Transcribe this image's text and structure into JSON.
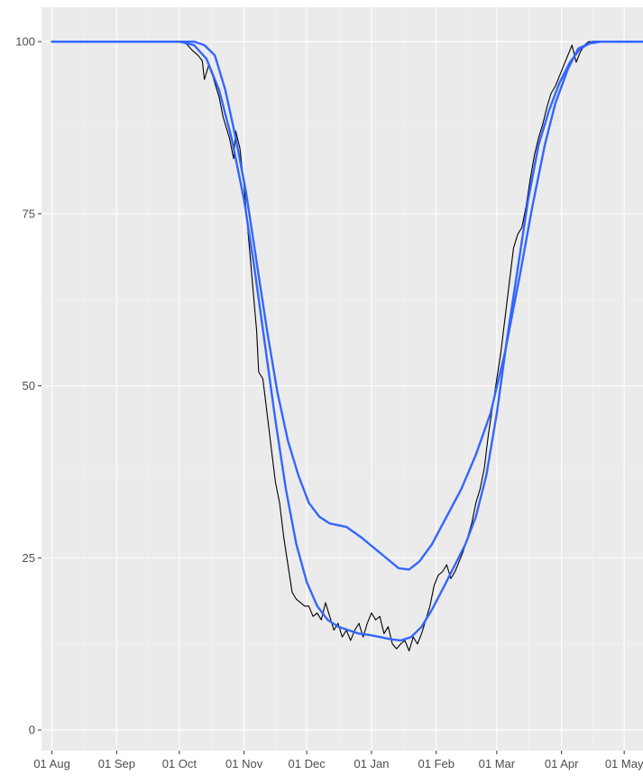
{
  "chart_data": {
    "type": "line",
    "title": "",
    "xlabel": "",
    "ylabel": "",
    "xlim": [
      "2019-07-27",
      "2020-05-10"
    ],
    "ylim": [
      -3,
      105
    ],
    "grid": true,
    "legend": "none",
    "colors": {
      "panel": "#ebebeb",
      "observed": "#000000",
      "smooth": "#3366ff"
    },
    "x_ticks": [
      "2019-08-01",
      "2019-09-01",
      "2019-10-01",
      "2019-11-01",
      "2019-12-01",
      "2020-01-01",
      "2020-02-01",
      "2020-03-01",
      "2020-04-01",
      "2020-05-01"
    ],
    "x_tick_labels": [
      "01 Aug",
      "01 Sep",
      "01 Oct",
      "01 Nov",
      "01 Dec",
      "01 Jan",
      "01 Feb",
      "01 Mar",
      "01 Apr",
      "01 May"
    ],
    "y_ticks": [
      0,
      25,
      50,
      75,
      100
    ],
    "y_tick_labels": [
      "0",
      "25",
      "50",
      "75",
      "100"
    ],
    "series": [
      {
        "style": "observed",
        "points": [
          [
            "2019-08-01",
            100
          ],
          [
            "2019-09-01",
            100
          ],
          [
            "2019-10-01",
            100
          ],
          [
            "2019-10-04",
            99.8
          ],
          [
            "2019-10-07",
            98.8
          ],
          [
            "2019-10-10",
            98
          ],
          [
            "2019-10-12",
            97.2
          ],
          [
            "2019-10-13",
            94.5
          ],
          [
            "2019-10-15",
            96.5
          ],
          [
            "2019-10-17",
            95
          ],
          [
            "2019-10-20",
            92
          ],
          [
            "2019-10-22",
            89
          ],
          [
            "2019-10-25",
            86
          ],
          [
            "2019-10-27",
            83
          ],
          [
            "2019-10-28",
            87
          ],
          [
            "2019-10-30",
            84.5
          ],
          [
            "2019-11-01",
            79
          ],
          [
            "2019-11-03",
            72
          ],
          [
            "2019-11-05",
            65
          ],
          [
            "2019-11-07",
            58
          ],
          [
            "2019-11-08",
            52
          ],
          [
            "2019-11-10",
            51
          ],
          [
            "2019-11-12",
            46
          ],
          [
            "2019-11-14",
            41
          ],
          [
            "2019-11-16",
            36
          ],
          [
            "2019-11-18",
            33
          ],
          [
            "2019-11-20",
            28
          ],
          [
            "2019-11-22",
            24
          ],
          [
            "2019-11-24",
            20
          ],
          [
            "2019-11-26",
            19
          ],
          [
            "2019-11-28",
            18.5
          ],
          [
            "2019-11-30",
            18
          ],
          [
            "2019-12-02",
            18
          ],
          [
            "2019-12-04",
            16.5
          ],
          [
            "2019-12-06",
            17
          ],
          [
            "2019-12-08",
            16
          ],
          [
            "2019-12-10",
            18.5
          ],
          [
            "2019-12-12",
            16.5
          ],
          [
            "2019-12-14",
            14.5
          ],
          [
            "2019-12-16",
            15.5
          ],
          [
            "2019-12-18",
            13.5
          ],
          [
            "2019-12-20",
            14.5
          ],
          [
            "2019-12-22",
            13
          ],
          [
            "2019-12-24",
            14.5
          ],
          [
            "2019-12-26",
            15.5
          ],
          [
            "2019-12-28",
            13.5
          ],
          [
            "2019-12-30",
            15.5
          ],
          [
            "2020-01-01",
            17
          ],
          [
            "2020-01-03",
            16
          ],
          [
            "2020-01-05",
            16.5
          ],
          [
            "2020-01-07",
            14
          ],
          [
            "2020-01-09",
            15
          ],
          [
            "2020-01-11",
            12.5
          ],
          [
            "2020-01-13",
            11.8
          ],
          [
            "2020-01-15",
            12.5
          ],
          [
            "2020-01-17",
            13
          ],
          [
            "2020-01-19",
            11.5
          ],
          [
            "2020-01-21",
            13.5
          ],
          [
            "2020-01-23",
            12.5
          ],
          [
            "2020-01-25",
            14
          ],
          [
            "2020-01-27",
            16
          ],
          [
            "2020-01-29",
            18
          ],
          [
            "2020-01-31",
            21
          ],
          [
            "2020-02-02",
            22.5
          ],
          [
            "2020-02-04",
            23
          ],
          [
            "2020-02-06",
            24
          ],
          [
            "2020-02-08",
            22
          ],
          [
            "2020-02-10",
            23
          ],
          [
            "2020-02-12",
            24.5
          ],
          [
            "2020-02-14",
            26
          ],
          [
            "2020-02-16",
            28
          ],
          [
            "2020-02-18",
            30
          ],
          [
            "2020-02-20",
            33
          ],
          [
            "2020-02-22",
            35
          ],
          [
            "2020-02-24",
            38
          ],
          [
            "2020-02-26",
            43
          ],
          [
            "2020-02-28",
            47
          ],
          [
            "2020-03-01",
            51
          ],
          [
            "2020-03-03",
            55
          ],
          [
            "2020-03-05",
            60
          ],
          [
            "2020-03-07",
            65
          ],
          [
            "2020-03-09",
            70
          ],
          [
            "2020-03-11",
            72
          ],
          [
            "2020-03-13",
            73
          ],
          [
            "2020-03-15",
            76
          ],
          [
            "2020-03-17",
            80
          ],
          [
            "2020-03-19",
            83.5
          ],
          [
            "2020-03-21",
            86
          ],
          [
            "2020-03-23",
            88
          ],
          [
            "2020-03-25",
            90.5
          ],
          [
            "2020-03-27",
            92.5
          ],
          [
            "2020-03-29",
            93.5
          ],
          [
            "2020-03-31",
            95
          ],
          [
            "2020-04-02",
            96.5
          ],
          [
            "2020-04-04",
            98
          ],
          [
            "2020-04-06",
            99.5
          ],
          [
            "2020-04-08",
            97
          ],
          [
            "2020-04-10",
            98.5
          ],
          [
            "2020-04-12",
            99.5
          ],
          [
            "2020-04-14",
            100
          ],
          [
            "2020-04-20",
            100
          ],
          [
            "2020-05-10",
            100
          ]
        ]
      },
      {
        "style": "smooth",
        "points": [
          [
            "2019-08-01",
            100
          ],
          [
            "2019-10-01",
            100
          ],
          [
            "2019-10-08",
            99.5
          ],
          [
            "2019-10-14",
            97.5
          ],
          [
            "2019-10-20",
            93
          ],
          [
            "2019-10-26",
            86
          ],
          [
            "2019-11-01",
            77
          ],
          [
            "2019-11-06",
            67
          ],
          [
            "2019-11-11",
            56
          ],
          [
            "2019-11-16",
            45
          ],
          [
            "2019-11-21",
            35
          ],
          [
            "2019-11-26",
            27
          ],
          [
            "2019-12-01",
            21.5
          ],
          [
            "2019-12-06",
            18
          ],
          [
            "2019-12-11",
            16
          ],
          [
            "2019-12-16",
            15
          ],
          [
            "2019-12-21",
            14.5
          ],
          [
            "2019-12-26",
            14
          ],
          [
            "2019-12-31",
            13.8
          ],
          [
            "2020-01-05",
            13.5
          ],
          [
            "2020-01-10",
            13.2
          ],
          [
            "2020-01-15",
            13
          ],
          [
            "2020-01-20",
            13.5
          ],
          [
            "2020-01-25",
            15
          ],
          [
            "2020-01-30",
            17.5
          ],
          [
            "2020-02-05",
            21
          ],
          [
            "2020-02-10",
            24
          ],
          [
            "2020-02-15",
            27
          ],
          [
            "2020-02-20",
            31
          ],
          [
            "2020-02-25",
            37
          ],
          [
            "2020-03-01",
            46
          ],
          [
            "2020-03-06",
            57
          ],
          [
            "2020-03-11",
            67
          ],
          [
            "2020-03-16",
            77
          ],
          [
            "2020-03-21",
            85
          ],
          [
            "2020-03-26",
            90
          ],
          [
            "2020-03-31",
            94
          ],
          [
            "2020-04-05",
            97
          ],
          [
            "2020-04-10",
            99
          ],
          [
            "2020-04-16",
            100
          ],
          [
            "2020-05-10",
            100
          ]
        ]
      },
      {
        "style": "smooth",
        "points": [
          [
            "2019-08-01",
            100
          ],
          [
            "2019-10-08",
            100
          ],
          [
            "2019-10-13",
            99.5
          ],
          [
            "2019-10-18",
            98
          ],
          [
            "2019-10-23",
            93
          ],
          [
            "2019-10-28",
            86
          ],
          [
            "2019-11-02",
            78
          ],
          [
            "2019-11-07",
            68
          ],
          [
            "2019-11-12",
            58
          ],
          [
            "2019-11-17",
            49
          ],
          [
            "2019-11-22",
            42
          ],
          [
            "2019-11-27",
            37
          ],
          [
            "2019-12-02",
            33
          ],
          [
            "2019-12-07",
            31
          ],
          [
            "2019-12-12",
            30
          ],
          [
            "2019-12-20",
            29.5
          ],
          [
            "2019-12-27",
            28
          ],
          [
            "2020-01-02",
            26.5
          ],
          [
            "2020-01-08",
            25
          ],
          [
            "2020-01-14",
            23.5
          ],
          [
            "2020-01-19",
            23.3
          ],
          [
            "2020-01-24",
            24.5
          ],
          [
            "2020-01-30",
            27
          ],
          [
            "2020-02-06",
            31
          ],
          [
            "2020-02-13",
            35
          ],
          [
            "2020-02-20",
            40
          ],
          [
            "2020-02-27",
            46
          ],
          [
            "2020-03-05",
            55
          ],
          [
            "2020-03-12",
            66
          ],
          [
            "2020-03-18",
            76
          ],
          [
            "2020-03-24",
            85
          ],
          [
            "2020-03-29",
            91
          ],
          [
            "2020-04-04",
            96
          ],
          [
            "2020-04-09",
            99
          ],
          [
            "2020-04-14",
            99.7
          ],
          [
            "2020-04-20",
            100
          ],
          [
            "2020-05-10",
            100
          ]
        ]
      }
    ]
  }
}
